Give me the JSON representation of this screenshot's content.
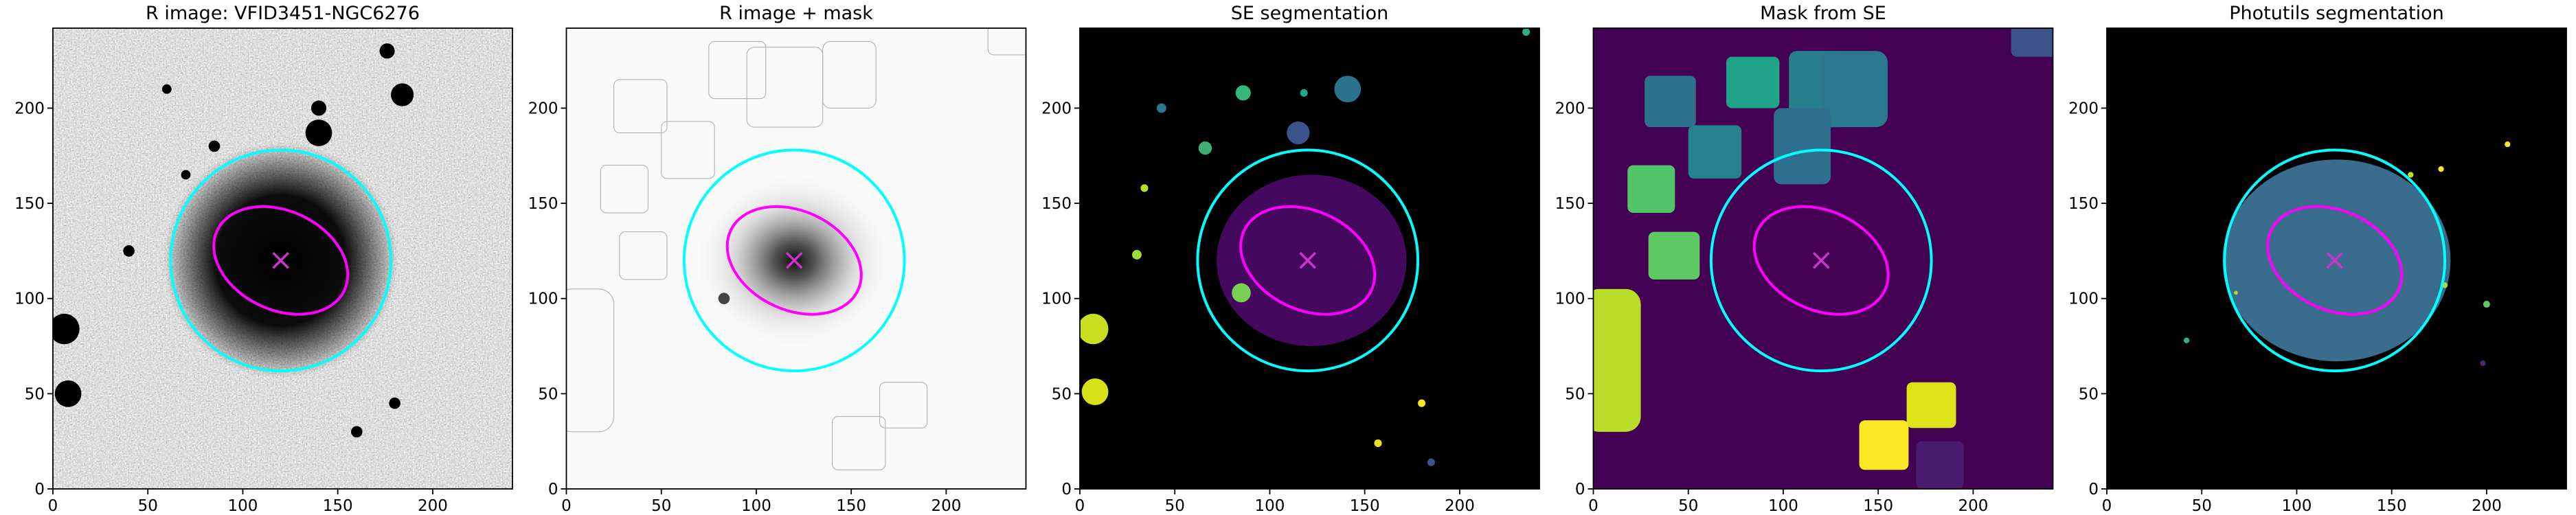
{
  "chart_data": [
    {
      "type": "image",
      "title": "R image: VFID3451-NGC6276",
      "xlim": [
        0,
        242
      ],
      "ylim": [
        0,
        242
      ],
      "xticks": [
        0,
        50,
        100,
        150,
        200
      ],
      "yticks": [
        0,
        50,
        100,
        150,
        200
      ]
    },
    {
      "type": "image",
      "title": "R image + mask",
      "xlim": [
        0,
        242
      ],
      "ylim": [
        0,
        242
      ],
      "xticks": [
        0,
        50,
        100,
        150,
        200
      ],
      "yticks": [
        0,
        50,
        100,
        150,
        200
      ]
    },
    {
      "type": "image",
      "title": "SE segmentation",
      "xlim": [
        0,
        242
      ],
      "ylim": [
        0,
        242
      ],
      "xticks": [
        0,
        50,
        100,
        150,
        200
      ],
      "yticks": [
        0,
        50,
        100,
        150,
        200
      ]
    },
    {
      "type": "image",
      "title": "Mask from SE",
      "xlim": [
        0,
        242
      ],
      "ylim": [
        0,
        242
      ],
      "xticks": [
        0,
        50,
        100,
        150,
        200
      ],
      "yticks": [
        0,
        50,
        100,
        150,
        200
      ]
    },
    {
      "type": "image",
      "title": "Photutils segmentation",
      "xlim": [
        0,
        242
      ],
      "ylim": [
        0,
        242
      ],
      "xticks": [
        0,
        50,
        100,
        150,
        200
      ],
      "yticks": [
        0,
        50,
        100,
        150,
        200
      ]
    }
  ]
}
